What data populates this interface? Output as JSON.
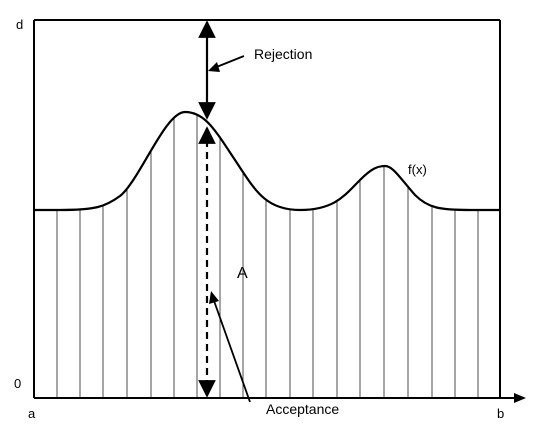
{
  "labels": {
    "d": "d",
    "zero": "0",
    "a": "a",
    "b": "b",
    "rejection": "Rejection",
    "fx": "f(x)",
    "region": "A",
    "acceptance": "Acceptance"
  },
  "colors": {
    "stroke": "#000000",
    "background": "#ffffff"
  }
}
